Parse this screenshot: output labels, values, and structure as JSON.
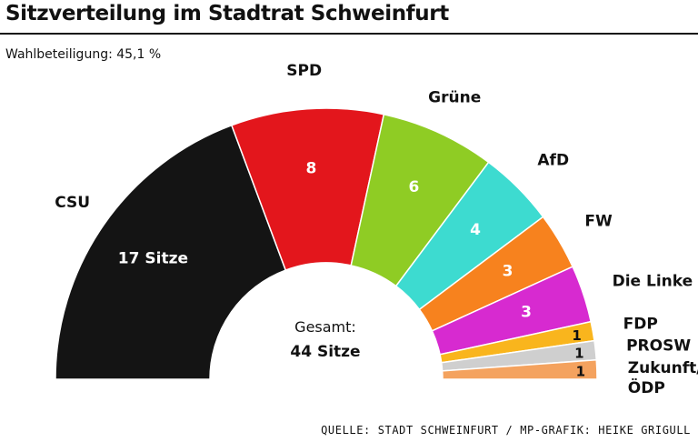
{
  "title": "Sitzverteilung im Stadtrat Schweinfurt",
  "turnout": "Wahlbeteiligung: 45,1 %",
  "source": "QUELLE: STADT SCHWEINFURT / MP-GRAFIK: HEIKE GRIGULL",
  "chart_data": {
    "type": "pie",
    "subtype": "half-donut (parliament seats)",
    "title": "Sitzverteilung im Stadtrat Schweinfurt",
    "total_label": "Gesamt:",
    "total_value": "44 Sitze",
    "total": 44,
    "series": [
      {
        "name": "CSU",
        "value": 17,
        "label": "17 Sitze",
        "color": "#141414",
        "text_color": "#ffffff"
      },
      {
        "name": "SPD",
        "value": 8,
        "label": "8",
        "color": "#e3161c",
        "text_color": "#ffffff"
      },
      {
        "name": "Grüne",
        "value": 6,
        "label": "6",
        "color": "#8fcc24",
        "text_color": "#ffffff"
      },
      {
        "name": "AfD",
        "value": 4,
        "label": "4",
        "color": "#3ddbd0",
        "text_color": "#ffffff"
      },
      {
        "name": "FW",
        "value": 3,
        "label": "3",
        "color": "#f7821e",
        "text_color": "#ffffff"
      },
      {
        "name": "Die Linke",
        "value": 3,
        "label": "3",
        "color": "#d72ad0",
        "text_color": "#ffffff"
      },
      {
        "name": "FDP",
        "value": 1,
        "label": "1",
        "color": "#f9b51d",
        "text_color": "#111111"
      },
      {
        "name": "PROSW",
        "value": 1,
        "label": "1",
        "color": "#cfcfcf",
        "text_color": "#111111"
      },
      {
        "name": "Zukunft/ ÖDP",
        "value": 1,
        "label": "1",
        "color": "#f4a25e",
        "text_color": "#111111"
      }
    ]
  }
}
